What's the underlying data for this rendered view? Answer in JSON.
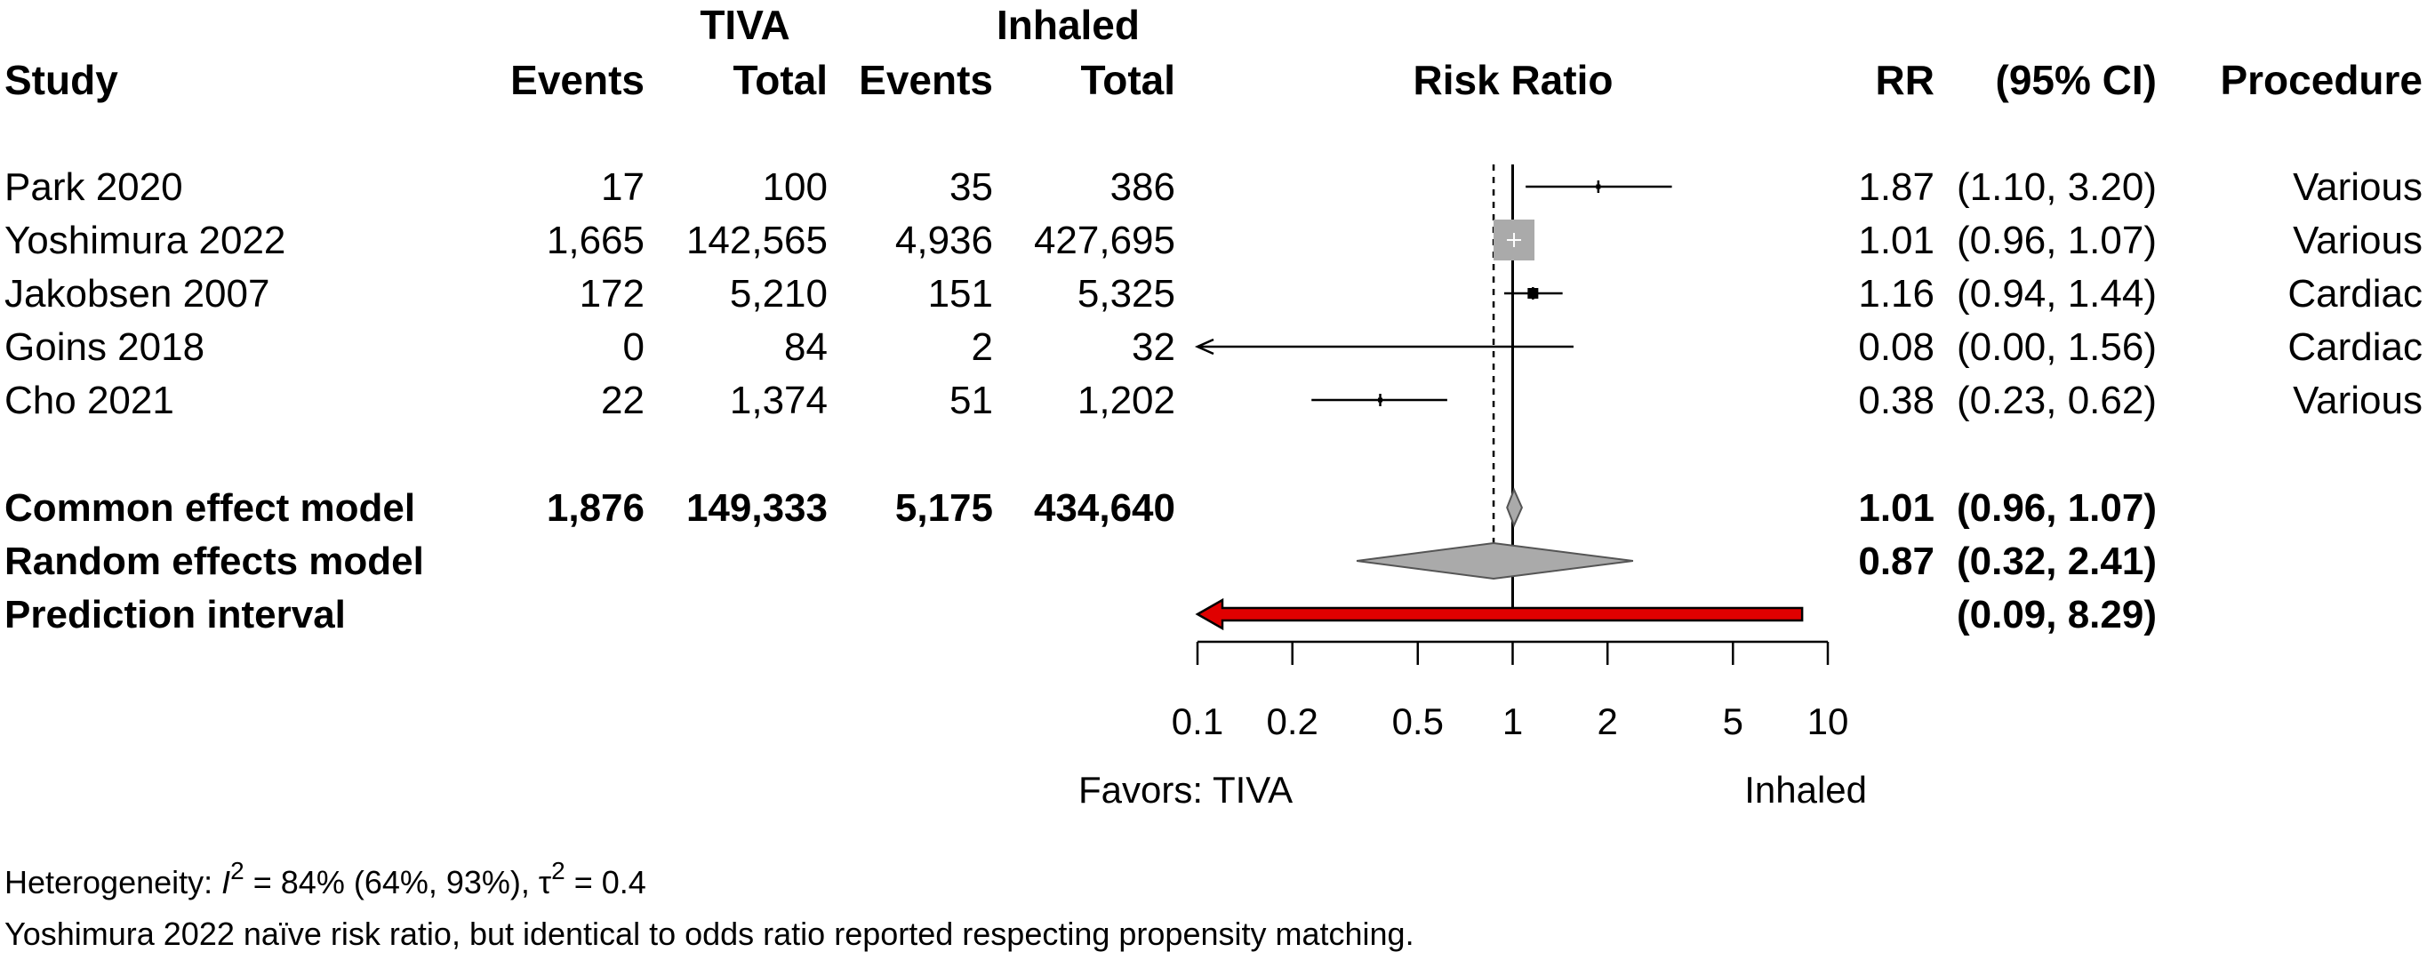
{
  "headers": {
    "group_tiva": "TIVA",
    "group_inhaled": "Inhaled",
    "study": "Study",
    "events": "Events",
    "total": "Total",
    "risk_ratio": "Risk Ratio",
    "rr": "RR",
    "ci": "(95% CI)",
    "procedure": "Procedure"
  },
  "footer": {
    "heterogeneity_prefix": "Heterogeneity: ",
    "i_symbol": "I",
    "sup2": "2",
    "i2_text": " = 84% (64%, 93%), ",
    "tau_symbol": "τ",
    "tau_text": " = 0.4",
    "note": "Yoshimura 2022 naïve risk ratio, but identical to odds ratio reported respecting propensity matching."
  },
  "colors": {
    "study_marker": "#000000",
    "weighted_box": "#aaaaaa",
    "diamond_fill": "#aaaaaa",
    "prediction_fill": "#e00000"
  },
  "chart_data": {
    "type": "forest",
    "x_label_left": "Favors: TIVA",
    "x_label_right": "Inhaled",
    "x_scale": "log",
    "x_ticks": [
      0.1,
      0.2,
      0.5,
      1,
      2,
      5,
      10
    ],
    "x_tick_labels": [
      "0.1",
      "0.2",
      "0.5",
      "1",
      "2",
      "5",
      "10"
    ],
    "xlim": [
      0.1,
      10
    ],
    "null_line": 1,
    "pooled_reference_line": 0.87,
    "studies": [
      {
        "name": "Park 2020",
        "tiva_events": "17",
        "tiva_total": "100",
        "inh_events": "35",
        "inh_total": "386",
        "rr": 1.87,
        "lo": 1.1,
        "hi": 3.2,
        "rr_text": "1.87",
        "ci_text": "(1.10, 3.20)",
        "procedure": "Various",
        "box": "small"
      },
      {
        "name": "Yoshimura 2022",
        "tiva_events": "1,665",
        "tiva_total": "142,565",
        "inh_events": "4,936",
        "inh_total": "427,695",
        "rr": 1.01,
        "lo": 0.96,
        "hi": 1.07,
        "rr_text": "1.01",
        "ci_text": "(0.96, 1.07)",
        "procedure": "Various",
        "box": "large"
      },
      {
        "name": "Jakobsen 2007",
        "tiva_events": "172",
        "tiva_total": "5,210",
        "inh_events": "151",
        "inh_total": "5,325",
        "rr": 1.16,
        "lo": 0.94,
        "hi": 1.44,
        "rr_text": "1.16",
        "ci_text": "(0.94, 1.44)",
        "procedure": "Cardiac",
        "box": "medium"
      },
      {
        "name": "Goins 2018",
        "tiva_events": "0",
        "tiva_total": "84",
        "inh_events": "2",
        "inh_total": "32",
        "rr": 0.08,
        "lo": 0.0,
        "hi": 1.56,
        "rr_text": "0.08",
        "ci_text": "(0.00, 1.56)",
        "procedure": "Cardiac",
        "box": "small"
      },
      {
        "name": "Cho 2021",
        "tiva_events": "22",
        "tiva_total": "1,374",
        "inh_events": "51",
        "inh_total": "1,202",
        "rr": 0.38,
        "lo": 0.23,
        "hi": 0.62,
        "rr_text": "0.38",
        "ci_text": "(0.23, 0.62)",
        "procedure": "Various",
        "box": "small"
      }
    ],
    "summaries": [
      {
        "name": "Common effect model",
        "tiva_events": "1,876",
        "tiva_total": "149,333",
        "inh_events": "5,175",
        "inh_total": "434,640",
        "rr": 1.01,
        "lo": 0.96,
        "hi": 1.07,
        "rr_text": "1.01",
        "ci_text": "(0.96, 1.07)",
        "kind": "diamond"
      },
      {
        "name": "Random effects model",
        "tiva_events": "",
        "tiva_total": "",
        "inh_events": "",
        "inh_total": "",
        "rr": 0.87,
        "lo": 0.32,
        "hi": 2.41,
        "rr_text": "0.87",
        "ci_text": "(0.32, 2.41)",
        "kind": "diamond"
      },
      {
        "name": "Prediction interval",
        "tiva_events": "",
        "tiva_total": "",
        "inh_events": "",
        "inh_total": "",
        "rr": null,
        "lo": 0.09,
        "hi": 8.29,
        "rr_text": "",
        "ci_text": "(0.09, 8.29)",
        "kind": "interval"
      }
    ]
  }
}
